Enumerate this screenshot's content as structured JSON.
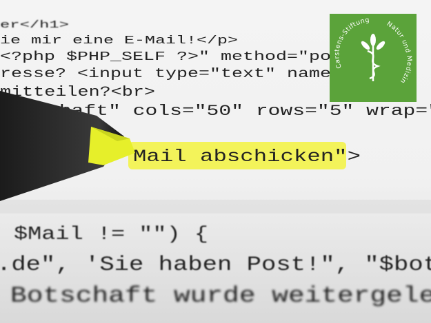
{
  "code_lines": [
    "er</h1>",
    "ie mir eine E-Mail!</p>",
    "<?php $PHP_SELF ?>\" method=\"po",
    "resse? <input type=\"text\" name",
    "mitteilen?<br>",
    "chaft\" cols=\"50\" rows=\"5\" wrap=\"",
    "Mail abschicken\">",
    "$Mail != \"\") {",
    ".de\", 'Sie haben Post!\", \"$bot",
    "Botschaft wurde weitergelei"
  ],
  "logo": {
    "title": "Carstens-Stiftung",
    "subtitle": "Natur und Medizin"
  }
}
